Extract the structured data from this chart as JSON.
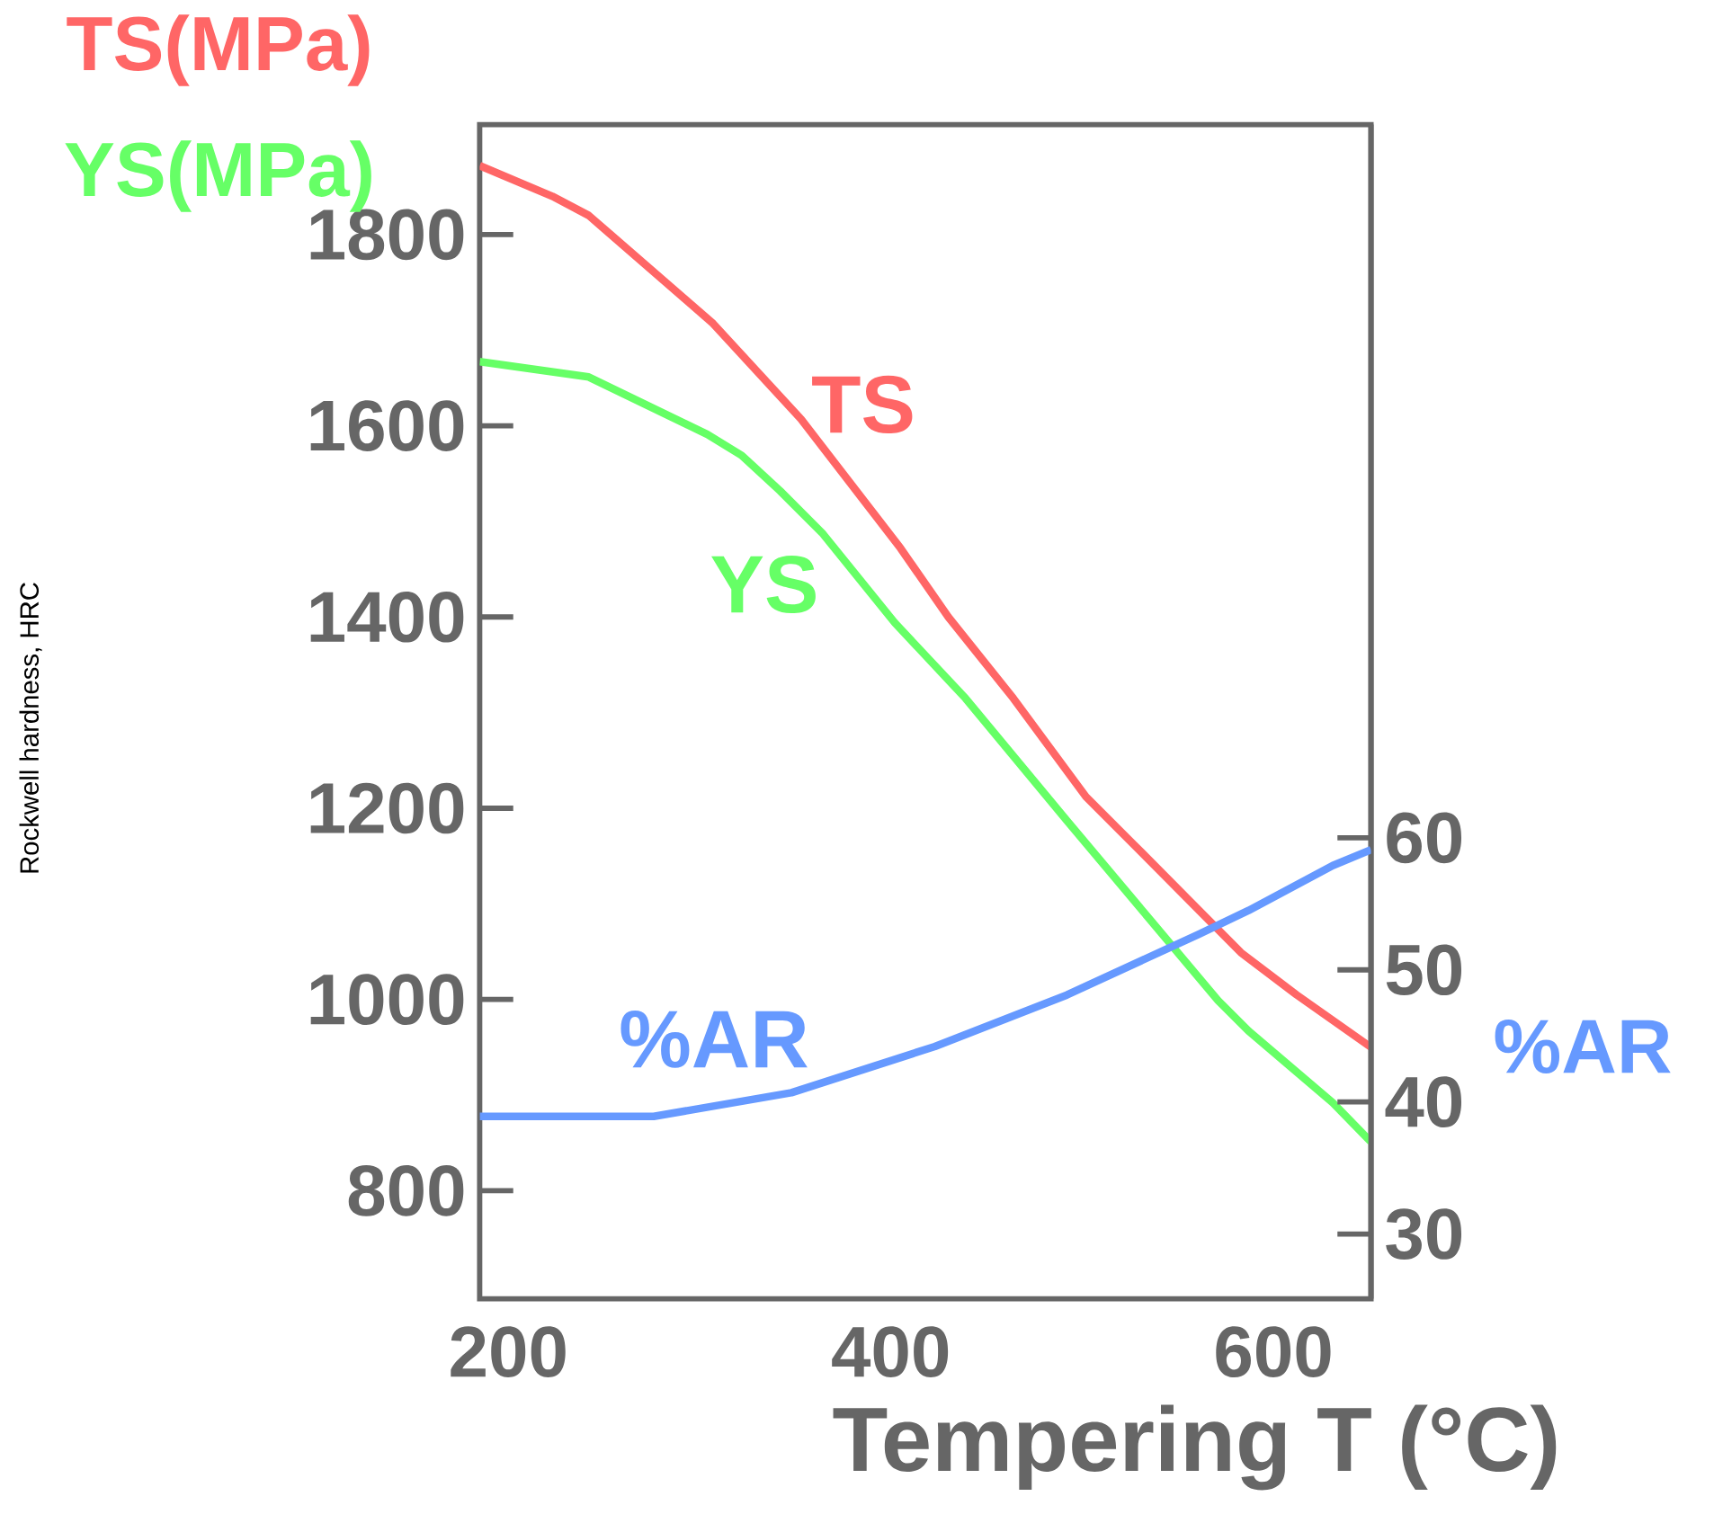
{
  "chart_data": {
    "type": "line",
    "xlabel": "Tempering T (°C)",
    "y2label": "%AR",
    "annotations": [
      "TS(MPa)",
      "YS(MPa)",
      "Rockwell hardness, HRC"
    ],
    "xlim": [
      185,
      651
    ],
    "xticks": [
      200,
      400,
      600
    ],
    "ylim": [
      687,
      1915
    ],
    "yticks": [
      800,
      1000,
      1200,
      1400,
      1600,
      1800
    ],
    "y2lim": [
      25.1,
      114
    ],
    "y2ticks": [
      30,
      40,
      50,
      60
    ],
    "series": [
      {
        "name": "TS",
        "color": "#ff6666",
        "x": [
          185,
          223,
          242,
          307,
          353,
          405,
          430,
          464,
          502,
          527,
          583,
          612,
          651
        ],
        "values": [
          1872,
          1840,
          1820,
          1707,
          1607,
          1472,
          1400,
          1315,
          1212,
          1162,
          1049,
          1005,
          950
        ]
      },
      {
        "name": "YS",
        "color": "#66ff66",
        "x": [
          185,
          242,
          304,
          322,
          342,
          364,
          402,
          439,
          492,
          571,
          587,
          631,
          651
        ],
        "values": [
          1667,
          1651,
          1591,
          1569,
          1532,
          1488,
          1394,
          1315,
          1187,
          999,
          967,
          892,
          851
        ]
      },
      {
        "name": "%AR",
        "color": "#6699ff",
        "axis": "y2",
        "x": [
          185,
          276,
          348,
          423,
          492,
          561,
          587,
          631,
          651
        ],
        "values": [
          38.9,
          38.9,
          40.7,
          44.2,
          48.1,
          52.7,
          54.5,
          57.9,
          59.1
        ]
      }
    ]
  }
}
